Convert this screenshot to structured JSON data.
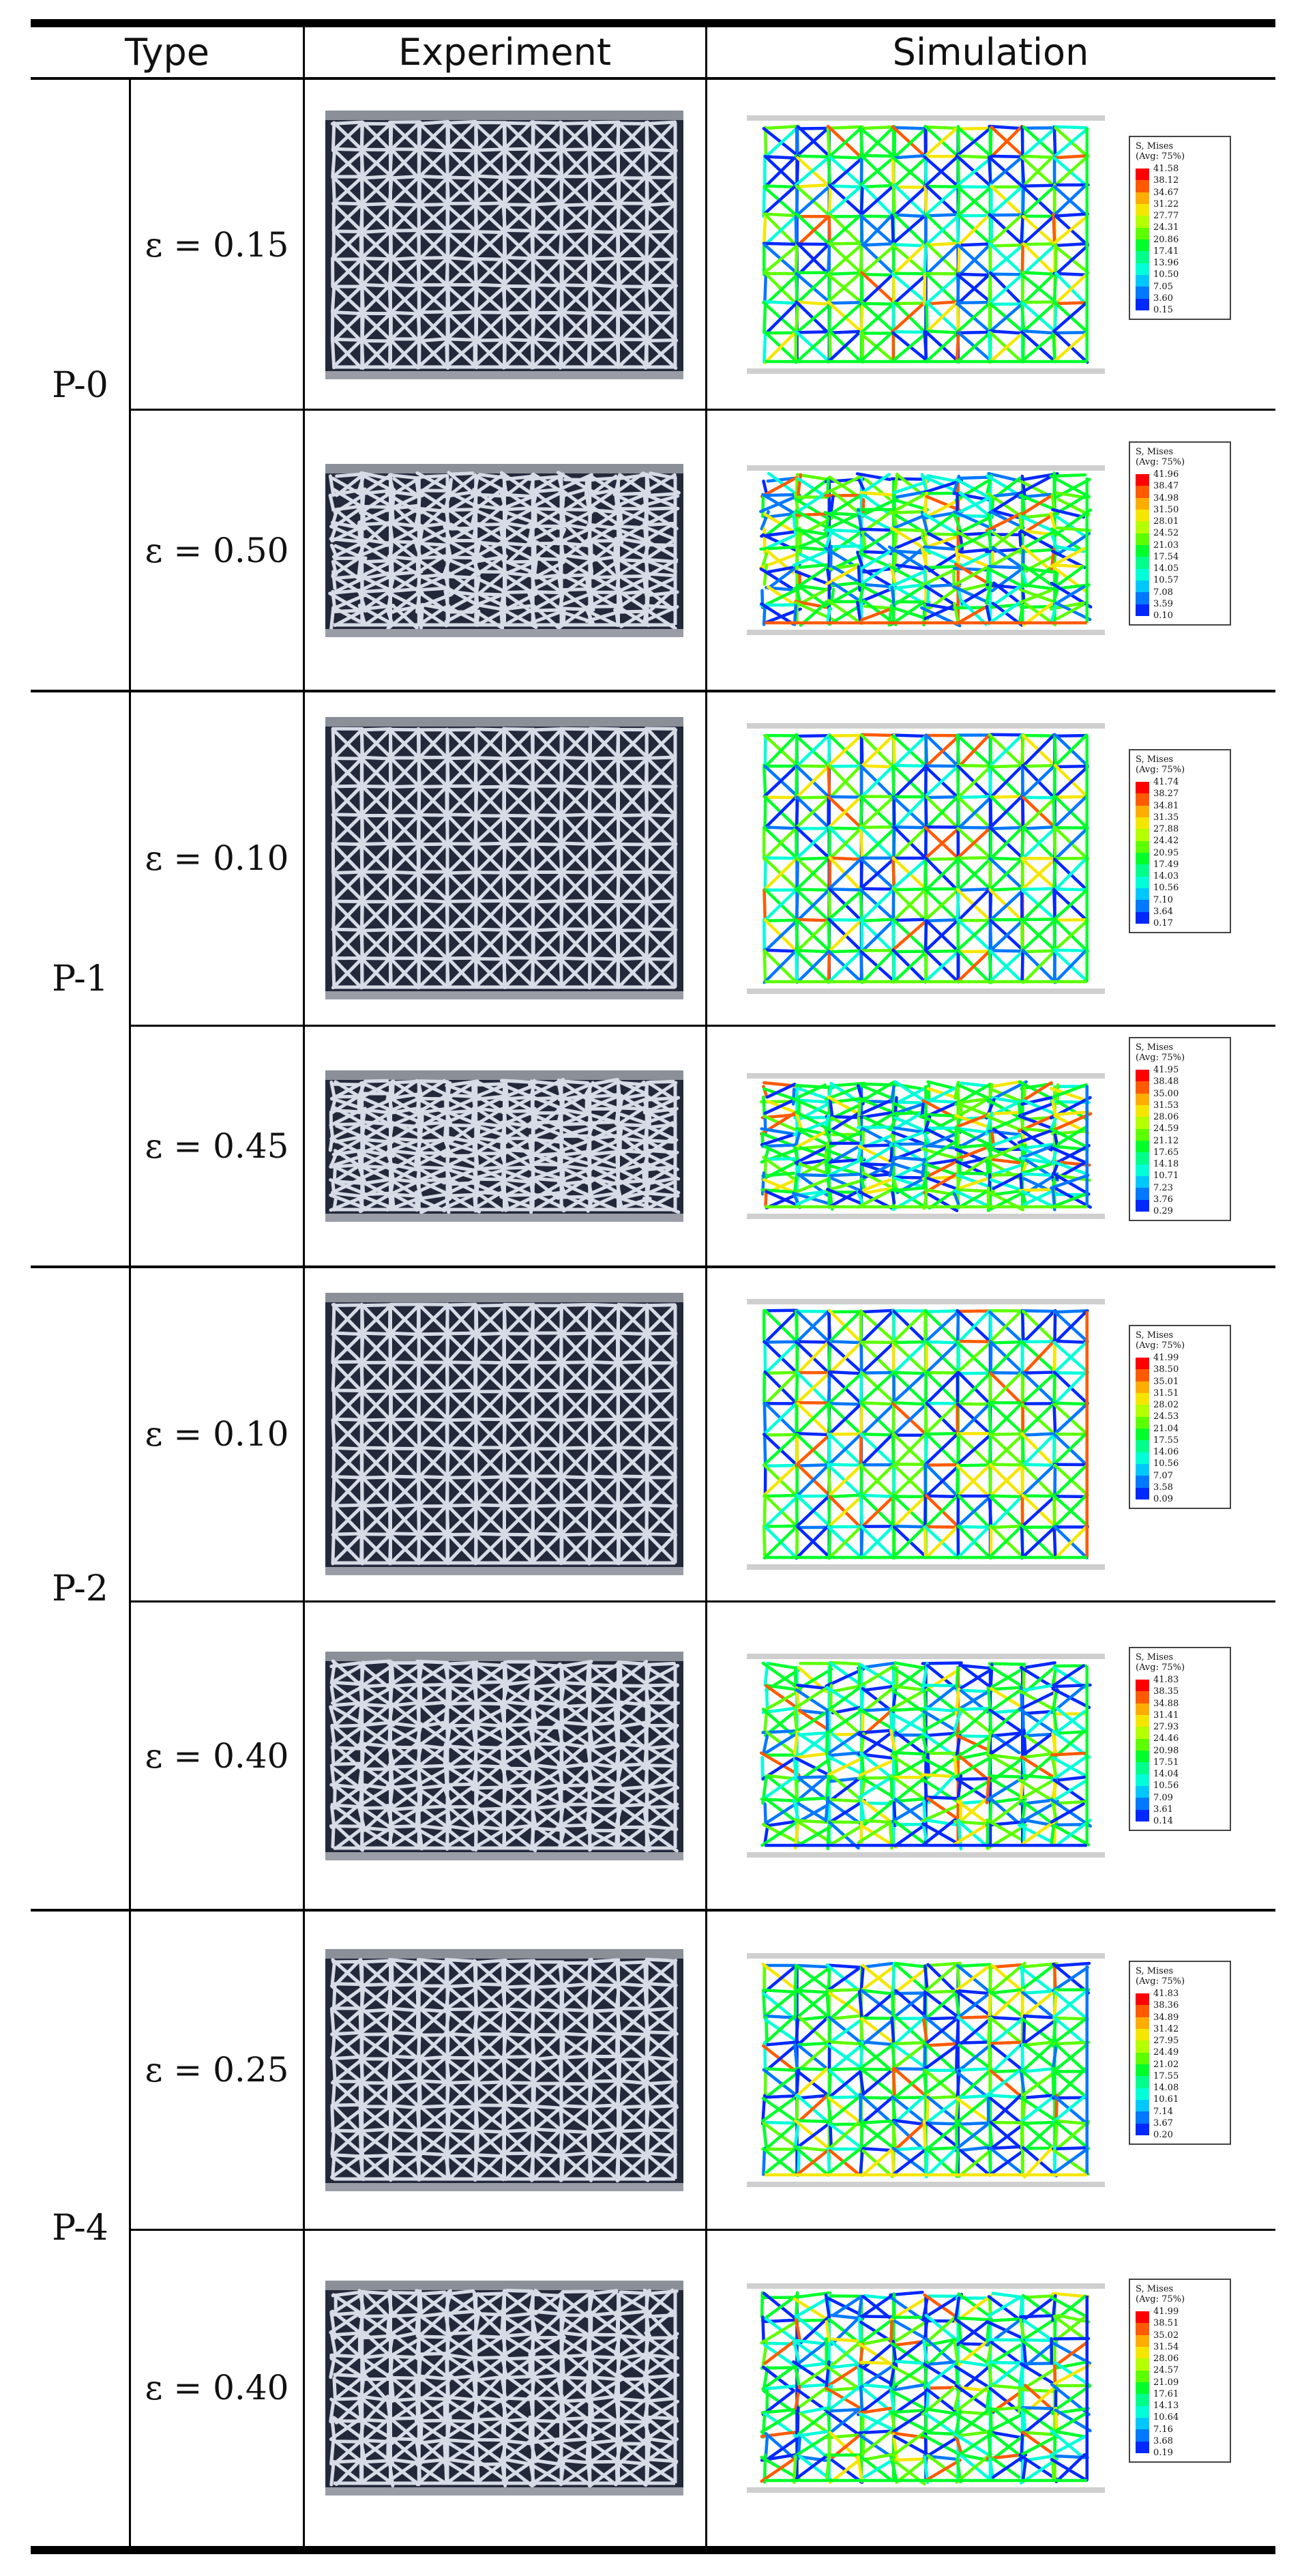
{
  "headers": {
    "type": "Type",
    "experiment": "Experiment",
    "simulation": "Simulation"
  },
  "legend_title_line1": "S, Mises",
  "legend_title_line2": "(Avg: 75%)",
  "colors": {
    "contour_scale": [
      "#ff0000",
      "#ff5a00",
      "#ffad00",
      "#f5e600",
      "#b4ff00",
      "#5cff00",
      "#00ff2a",
      "#00ff8a",
      "#00ffd9",
      "#00c8ff",
      "#0078ff",
      "#0028ff"
    ]
  },
  "groups": [
    {
      "type": "P-0",
      "rows": [
        {
          "strain": "ε = 0.15",
          "legend": [
            "41.58",
            "38.12",
            "34.67",
            "31.22",
            "27.77",
            "24.31",
            "20.86",
            "17.41",
            "13.96",
            "10.50",
            "7.05",
            "3.60",
            "0.15"
          ]
        },
        {
          "strain": "ε = 0.50",
          "legend": [
            "41.96",
            "38.47",
            "34.98",
            "31.50",
            "28.01",
            "24.52",
            "21.03",
            "17.54",
            "14.05",
            "10.57",
            "7.08",
            "3.59",
            "0.10"
          ]
        }
      ]
    },
    {
      "type": "P-1",
      "rows": [
        {
          "strain": "ε = 0.10",
          "legend": [
            "41.74",
            "38.27",
            "34.81",
            "31.35",
            "27.88",
            "24.42",
            "20.95",
            "17.49",
            "14.03",
            "10.56",
            "7.10",
            "3.64",
            "0.17"
          ]
        },
        {
          "strain": "ε = 0.45",
          "legend": [
            "41.95",
            "38.48",
            "35.00",
            "31.53",
            "28.06",
            "24.59",
            "21.12",
            "17.65",
            "14.18",
            "10.71",
            "7.23",
            "3.76",
            "0.29"
          ]
        }
      ]
    },
    {
      "type": "P-2",
      "rows": [
        {
          "strain": "ε = 0.10",
          "legend": [
            "41.99",
            "38.50",
            "35.01",
            "31.51",
            "28.02",
            "24.53",
            "21.04",
            "17.55",
            "14.06",
            "10.56",
            "7.07",
            "3.58",
            "0.09"
          ]
        },
        {
          "strain": "ε = 0.40",
          "legend": [
            "41.83",
            "38.35",
            "34.88",
            "31.41",
            "27.93",
            "24.46",
            "20.98",
            "17.51",
            "14.04",
            "10.56",
            "7.09",
            "3.61",
            "0.14"
          ]
        }
      ]
    },
    {
      "type": "P-4",
      "rows": [
        {
          "strain": "ε = 0.25",
          "legend": [
            "41.83",
            "38.36",
            "34.89",
            "31.42",
            "27.95",
            "24.49",
            "21.02",
            "17.55",
            "14.08",
            "10.61",
            "7.14",
            "3.67",
            "0.20"
          ]
        },
        {
          "strain": "ε = 0.40",
          "legend": [
            "41.99",
            "38.51",
            "35.02",
            "31.54",
            "28.06",
            "24.57",
            "21.09",
            "17.61",
            "14.13",
            "10.64",
            "7.16",
            "3.68",
            "0.19"
          ]
        }
      ]
    }
  ]
}
